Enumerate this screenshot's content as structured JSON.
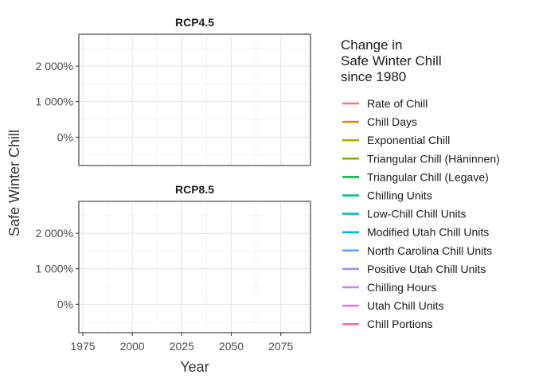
{
  "chart_data": {
    "type": "line",
    "xlabel": "Year",
    "ylabel": "Safe Winter Chill",
    "xlim": [
      1973,
      2090
    ],
    "x_ticks": [
      "1975",
      "2000",
      "2025",
      "2050",
      "2075"
    ],
    "x_tick_values": [
      1975,
      2000,
      2025,
      2050,
      2075
    ],
    "ylim": [
      -800,
      2900
    ],
    "y_ticks": [
      "0%",
      "1 000%",
      "2 000%"
    ],
    "y_tick_values": [
      0,
      1000,
      2000
    ],
    "grid": true,
    "panels": [
      {
        "title": "RCP4.5",
        "series": []
      },
      {
        "title": "RCP8.5",
        "series": []
      }
    ],
    "legend": {
      "position": "right",
      "title_lines": [
        "Change in",
        "Safe Winter Chill",
        "since 1980"
      ],
      "entries": [
        {
          "name": "Rate of Chill",
          "color": "#F8766D"
        },
        {
          "name": "Chill Days",
          "color": "#DE8C00"
        },
        {
          "name": "Exponential Chill",
          "color": "#B79F00"
        },
        {
          "name": "Triangular Chill (Häninnen)",
          "color": "#7CAE00"
        },
        {
          "name": "Triangular Chill (Legave)",
          "color": "#00BA38"
        },
        {
          "name": "Chilling Units",
          "color": "#00C08B"
        },
        {
          "name": "Low-Chill Chill Units",
          "color": "#00BFC4"
        },
        {
          "name": "Modified Utah Chill Units",
          "color": "#00B4F0"
        },
        {
          "name": "North Carolina Chill Units",
          "color": "#619CFF"
        },
        {
          "name": "Positive Utah Chill Units",
          "color": "#9590FF"
        },
        {
          "name": "Chilling Hours",
          "color": "#C77CFF"
        },
        {
          "name": "Utah Chill Units",
          "color": "#F564E3"
        },
        {
          "name": "Chill Portions",
          "color": "#FF64B0"
        }
      ]
    }
  }
}
